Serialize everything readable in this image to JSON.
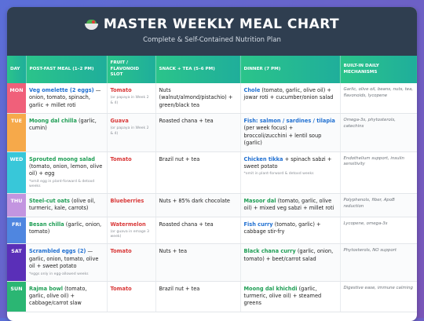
{
  "header": {
    "icon": "salad-bowl-icon",
    "title": "MASTER WEEKLY MEAL CHART",
    "subtitle": "Complete & Self-Contained Nutrition Plan"
  },
  "columns": {
    "day": "DAY",
    "post_fast": "POST-FAST MEAL (1–2 PM)",
    "fruit": "FRUIT / FLAVONOID SLOT",
    "snack": "SNACK + TEA (5–6 PM)",
    "dinner": "DINNER (7 PM)",
    "mech": "BUILT-IN DAILY MECHANISMS"
  },
  "colors": {
    "accent_blue": "#1f6fd1",
    "accent_green": "#1f9e55",
    "accent_red": "#d93838",
    "header_bg": "#2f3e50",
    "column_header_bg": "#2bc48a"
  },
  "rows": [
    {
      "day": "MON",
      "day_color": "#f0607a",
      "post_hl": "Veg omelette (2 eggs)",
      "post_rest": " — onion, tomato, spinach, garlic + millet roti",
      "post_note": "",
      "fruit": "Tomato",
      "fruit_note": "(or papaya in Week 2 & 4)",
      "snack": "Nuts (walnut/almond/pistachio) + green/black tea",
      "dinner_hl": "Chole",
      "dinner_rest": " (tomato, garlic, olive oil) + jowar roti + cucumber/onion salad",
      "dinner_note": "",
      "mech": "Garlic, olive oil, beans, nuts, tea, flavonoids, lycopene"
    },
    {
      "day": "TUE",
      "day_color": "#f6a94a",
      "post_hl": "Moong dal chilla",
      "post_rest": " (garlic, cumin)",
      "post_note": "",
      "fruit": "Guava",
      "fruit_note": "(or papaya in Week 2 & 4)",
      "snack": "Roasted chana + tea",
      "dinner_hl": "Fish: salmon / sardines / tilapia",
      "dinner_rest": " (per week focus) + broccoli/zucchini + lentil soup (garlic)",
      "dinner_note": "",
      "mech": "Omega-3s, phytosterols, catechins"
    },
    {
      "day": "WED",
      "day_color": "#38c7d9",
      "post_hl": "Sprouted moong salad",
      "post_rest": " (tomato, onion, lemon, olive oil) + egg",
      "post_note": "*omit egg in plant-forward & detoxd weeks",
      "fruit": "Tomato",
      "fruit_note": "",
      "snack": "Brazil nut + tea",
      "dinner_hl": "Chicken tikka",
      "dinner_rest": " + spinach sabzi + sweet potato",
      "dinner_note": "*omit in plant-forward & detoxd weeks",
      "mech": "Endothelium support, insulin sensitivity"
    },
    {
      "day": "THU",
      "day_color": "#c395e0",
      "post_hl": "Steel-cut oats",
      "post_rest": " (olive oil, turmeric, kale, carrots)",
      "post_note": "",
      "fruit": "Blueberries",
      "fruit_note": "",
      "snack": "Nuts + 85% dark chocolate",
      "dinner_hl": "Masoor dal",
      "dinner_rest": " (tomato, garlic, olive oil) + mixed veg sabzi + millet roti",
      "dinner_note": "",
      "mech": "Polyphenols, fiber, ApoB reduction"
    },
    {
      "day": "FRI",
      "day_color": "#4f86e0",
      "post_hl": "Besan chilla",
      "post_rest": " (garlic, onion, tomato)",
      "post_note": "",
      "fruit": "Watermelon",
      "fruit_note": "(or guava in emage 3 week)",
      "snack": "Roasted chana + tea",
      "dinner_hl": "Fish curry",
      "dinner_rest": " (tomato, garlic) + cabbage stir-fry",
      "dinner_note": "",
      "mech": "Lycopene, omega-3s"
    },
    {
      "day": "SAT",
      "day_color": "#5a2fb8",
      "post_hl": "Scrambled eggs (2)",
      "post_rest": " — garlic, onion, tomato, olive oil + sweet potato",
      "post_note": "*eggs only in egg-allowed weeks",
      "fruit": "Tomato",
      "fruit_note": "",
      "snack": "Nuts + tea",
      "dinner_hl": "Black chana curry",
      "dinner_rest": " (garlic, onion, tomato) + beet/carrot salad",
      "dinner_note": "",
      "mech": "Phytosterols, NO support"
    },
    {
      "day": "SUN",
      "day_color": "#2bb673",
      "post_hl": "Rajma bowl",
      "post_rest": " (tomato, garlic, olive oil) + cabbage/carrot slaw",
      "post_note": "",
      "fruit": "Tomato",
      "fruit_note": "",
      "snack": "Brazil nut + tea",
      "dinner_hl": "Moong dal khichdi",
      "dinner_rest": " (garlic, turmeric, olive oil) + steamed greens",
      "dinner_note": "",
      "mech": "Digestive ease, immune calming"
    }
  ]
}
